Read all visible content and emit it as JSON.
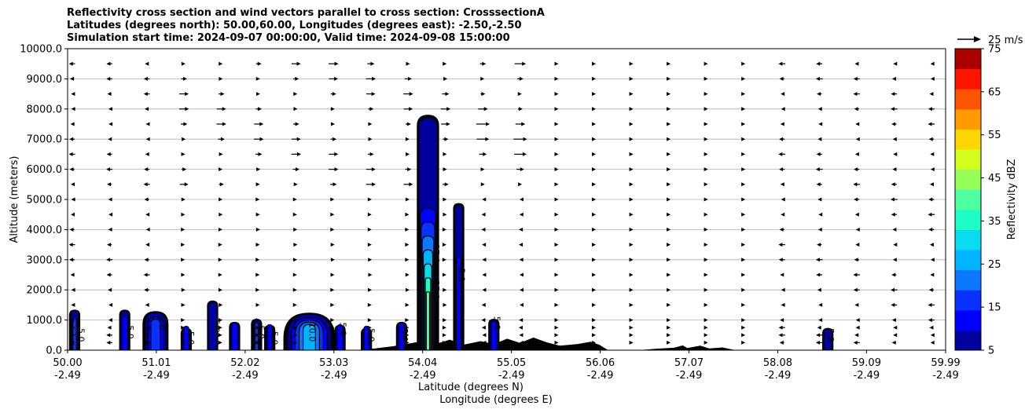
{
  "title": {
    "line1": "Reflectivity cross section and wind vectors parallel to cross section: CrosssectionA",
    "line2": "Latitudes (degrees north): 50.00,60.00, Longitudes (degrees east): -2.50,-2.50",
    "line3": "Simulation start time: 2024-09-07 00:00:00, Valid time: 2024-09-08 15:00:00"
  },
  "chart_data": {
    "type": "heatmap",
    "title": "Reflectivity cross section and wind vectors parallel to cross section: CrosssectionA",
    "ylabel": "Altitude (meters)",
    "xlabel": "Latitude (degrees N)",
    "xlabel2": "Longitude (degrees E)",
    "ylim": [
      0,
      10000
    ],
    "xlim": [
      50.0,
      59.99
    ],
    "yticks": [
      "0.0",
      "1000.0",
      "2000.0",
      "3000.0",
      "4000.0",
      "5000.0",
      "6000.0",
      "7000.0",
      "8000.0",
      "9000.0",
      "10000.0"
    ],
    "xticks": [
      {
        "lat": "50.00",
        "lon": "-2.49"
      },
      {
        "lat": "51.01",
        "lon": "-2.49"
      },
      {
        "lat": "52.02",
        "lon": "-2.49"
      },
      {
        "lat": "53.03",
        "lon": "-2.49"
      },
      {
        "lat": "54.04",
        "lon": "-2.49"
      },
      {
        "lat": "55.05",
        "lon": "-2.49"
      },
      {
        "lat": "56.06",
        "lon": "-2.49"
      },
      {
        "lat": "57.07",
        "lon": "-2.49"
      },
      {
        "lat": "58.08",
        "lon": "-2.49"
      },
      {
        "lat": "59.09",
        "lon": "-2.49"
      },
      {
        "lat": "59.99",
        "lon": "-2.49"
      }
    ],
    "grid": "horizontal",
    "colorbar": {
      "label": "Reflectivity dBZ",
      "ticks": [
        "5",
        "15",
        "25",
        "35",
        "45",
        "55",
        "65",
        "75"
      ],
      "levels": [
        5,
        10,
        15,
        20,
        25,
        30,
        35,
        40,
        45,
        50,
        55,
        60,
        65,
        70,
        75
      ],
      "colors": [
        "#00009f",
        "#0000ff",
        "#0a32ff",
        "#0a78ff",
        "#00b4ff",
        "#0adcf0",
        "#1effc8",
        "#50ffa0",
        "#96ff5a",
        "#d2ff1e",
        "#ffd700",
        "#ff9b00",
        "#ff5500",
        "#ff1400",
        "#aa0000"
      ]
    },
    "vector_key": "25 m/s",
    "contour_labels": [
      "5.0",
      "10.0",
      "15.0",
      "20.0",
      "25.0",
      "30.0",
      "35.0"
    ],
    "cells": [
      {
        "lat": 50.08,
        "top": 1300,
        "max_dbz": 15
      },
      {
        "lat": 50.65,
        "top": 1300,
        "max_dbz": 10
      },
      {
        "lat": 51.0,
        "top": 1250,
        "max_dbz": 15
      },
      {
        "lat": 51.35,
        "top": 700,
        "max_dbz": 10
      },
      {
        "lat": 51.65,
        "top": 1600,
        "max_dbz": 5
      },
      {
        "lat": 51.9,
        "top": 900,
        "max_dbz": 10
      },
      {
        "lat": 52.15,
        "top": 1000,
        "max_dbz": 15
      },
      {
        "lat": 52.3,
        "top": 800,
        "max_dbz": 10
      },
      {
        "lat": 52.75,
        "top": 1200,
        "max_dbz": 25
      },
      {
        "lat": 53.1,
        "top": 800,
        "max_dbz": 10
      },
      {
        "lat": 53.4,
        "top": 700,
        "max_dbz": 10
      },
      {
        "lat": 53.8,
        "top": 900,
        "max_dbz": 10
      },
      {
        "lat": 54.1,
        "top": 7700,
        "max_dbz": 40
      },
      {
        "lat": 54.45,
        "top": 4800,
        "max_dbz": 10
      },
      {
        "lat": 54.85,
        "top": 1000,
        "max_dbz": 10
      },
      {
        "lat": 58.65,
        "top": 700,
        "max_dbz": 5
      }
    ]
  }
}
